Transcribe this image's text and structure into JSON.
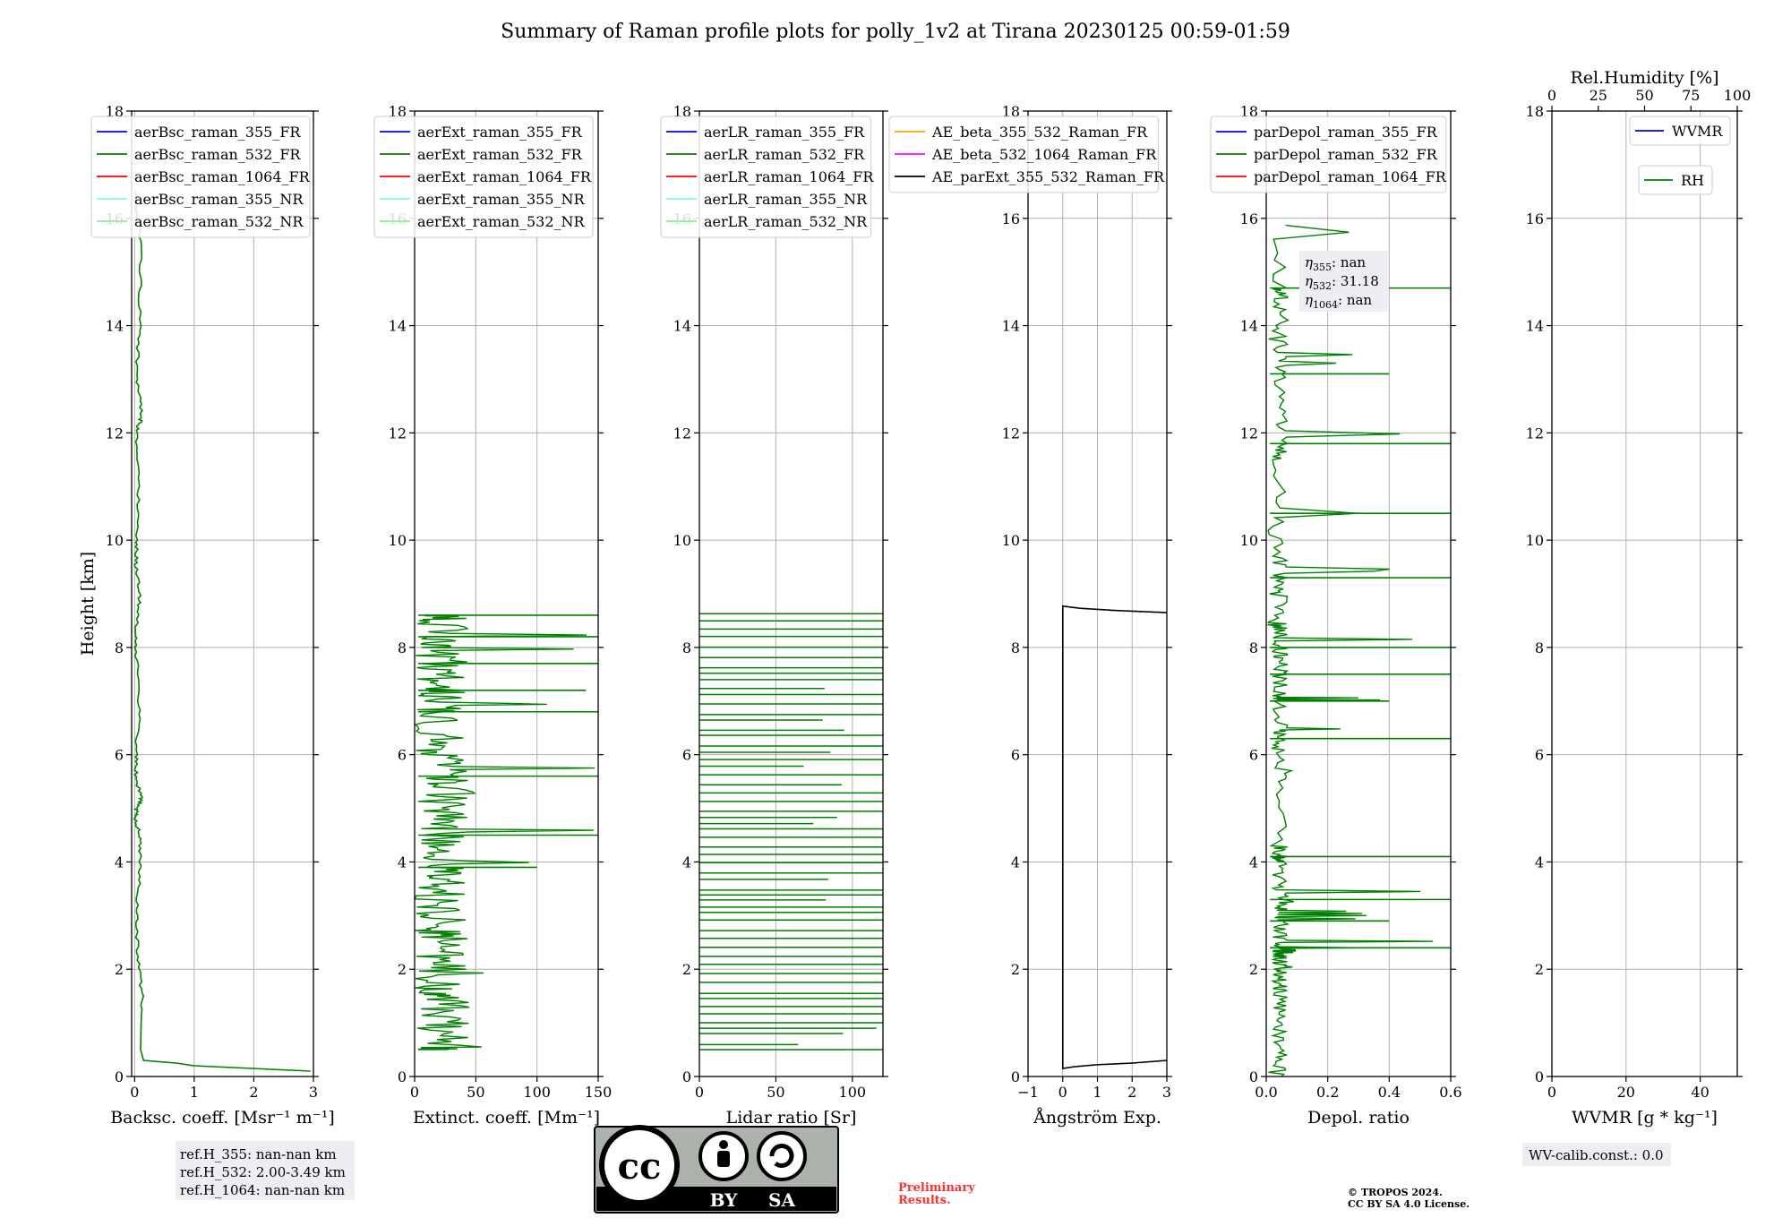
{
  "title": "Summary of Raman profile plots for polly_1v2 at Tirana 20230125 00:59-01:59",
  "ylabel": "Height [km]",
  "yticks": [
    "0",
    "2",
    "4",
    "6",
    "8",
    "10",
    "12",
    "14",
    "16",
    "18"
  ],
  "panels": [
    {
      "xlabel": "Backsc. coeff. [Msr⁻¹ m⁻¹]",
      "xticks": [
        "0",
        "1",
        "2",
        "3"
      ],
      "legend": [
        {
          "label": "aerBsc_raman_355_FR",
          "color": "#0000ff"
        },
        {
          "label": "aerBsc_raman_532_FR",
          "color": "#008000"
        },
        {
          "label": "aerBsc_raman_1064_FR",
          "color": "#ff0000"
        },
        {
          "label": "aerBsc_raman_355_NR",
          "color": "#7fffd4"
        },
        {
          "label": "aerBsc_raman_532_NR",
          "color": "#90ee90"
        }
      ]
    },
    {
      "xlabel": "Extinct. coeff. [Mm⁻¹]",
      "xticks": [
        "0",
        "50",
        "100",
        "150"
      ],
      "legend": [
        {
          "label": "aerExt_raman_355_FR",
          "color": "#0000ff"
        },
        {
          "label": "aerExt_raman_532_FR",
          "color": "#008000"
        },
        {
          "label": "aerExt_raman_1064_FR",
          "color": "#ff0000"
        },
        {
          "label": "aerExt_raman_355_NR",
          "color": "#7fffd4"
        },
        {
          "label": "aerExt_raman_532_NR",
          "color": "#90ee90"
        }
      ]
    },
    {
      "xlabel": "Lidar ratio [Sr]",
      "xticks": [
        "0",
        "50",
        "100"
      ],
      "legend": [
        {
          "label": "aerLR_raman_355_FR",
          "color": "#0000ff"
        },
        {
          "label": "aerLR_raman_532_FR",
          "color": "#008000"
        },
        {
          "label": "aerLR_raman_1064_FR",
          "color": "#ff0000"
        },
        {
          "label": "aerLR_raman_355_NR",
          "color": "#7fffd4"
        },
        {
          "label": "aerLR_raman_532_NR",
          "color": "#90ee90"
        }
      ]
    },
    {
      "xlabel": "Ångström Exp.",
      "xticks": [
        "−1",
        "0",
        "1",
        "2",
        "3"
      ],
      "legend": [
        {
          "label": "AE_beta_355_532_Raman_FR",
          "color": "#ffa500"
        },
        {
          "label": "AE_beta_532_1064_Raman_FR",
          "color": "#ff00ff"
        },
        {
          "label": "AE_parExt_355_532_Raman_FR",
          "color": "#000000"
        }
      ]
    },
    {
      "xlabel": "Depol. ratio",
      "xticks": [
        "0.0",
        "0.2",
        "0.4",
        "0.6"
      ],
      "legend": [
        {
          "label": "parDepol_raman_355_FR",
          "color": "#0000ff"
        },
        {
          "label": "parDepol_raman_532_FR",
          "color": "#008000"
        },
        {
          "label": "parDepol_raman_1064_FR",
          "color": "#ff0000"
        }
      ],
      "eta": [
        {
          "sub": "355",
          "value": "nan"
        },
        {
          "sub": "532",
          "value": "31.18"
        },
        {
          "sub": "1064",
          "value": "nan"
        }
      ]
    },
    {
      "xlabel": "WVMR [g * kg⁻¹]",
      "xticks": [
        "0",
        "20",
        "40"
      ],
      "top_label": "Rel.Humidity [%]",
      "top_ticks": [
        "0",
        "25",
        "50",
        "75",
        "100"
      ],
      "legend_wvmr": {
        "label": "WVMR",
        "color": "#0000ff"
      },
      "legend_rh": {
        "label": "RH",
        "color": "#008000"
      }
    }
  ],
  "ref_box": [
    "ref.H_355: nan-nan km",
    "ref.H_532: 2.00-3.49 km",
    "ref.H_1064: nan-nan km"
  ],
  "wv_calib": "WV-calib.const.: 0.0",
  "license_badge": {
    "cc": "cc",
    "by": "BY",
    "sa": "SA"
  },
  "preliminary": [
    "Preliminary",
    "Results."
  ],
  "copyright": [
    "© TROPOS 2024.",
    "CC BY SA 4.0 License."
  ],
  "chart_data": [
    {
      "type": "line",
      "xlabel": "Backsc. coeff. [Msr⁻¹ m⁻¹]",
      "ylabel": "Height [km]",
      "xlim": [
        -0.05,
        3
      ],
      "ylim": [
        0,
        18
      ],
      "series": [
        {
          "name": "aerBsc_raman_532_FR",
          "color": "#008000",
          "x": [
            2.95,
            1.0,
            0.7,
            0.15,
            0.1,
            0.12,
            0.05,
            0.03,
            0.08,
            0.1,
            0.02,
            0.04,
            0.12,
            0.02,
            0.03,
            0.08,
            0.02,
            0.03,
            0.1,
            0.02,
            0.03,
            0.08,
            0.02,
            0.12,
            0.03,
            0.08,
            0.1,
            0.02
          ],
          "y": [
            0.1,
            0.2,
            0.25,
            0.3,
            0.5,
            1.5,
            2.3,
            3.0,
            3.8,
            4.4,
            4.8,
            5.0,
            5.2,
            5.5,
            6.0,
            7.0,
            8.0,
            8.5,
            9.0,
            9.5,
            10.0,
            11.0,
            12.0,
            12.3,
            13.0,
            14.0,
            15.5,
            16.5
          ]
        }
      ]
    },
    {
      "type": "line",
      "xlabel": "Extinct. coeff. [Mm⁻¹]",
      "ylabel": "Height [km]",
      "xlim": [
        0,
        150
      ],
      "ylim": [
        0,
        18
      ],
      "series": [
        {
          "name": "aerExt_raman_532_FR",
          "color": "#008000",
          "note_values": "noisy profile, values between 0 and 150, data above 8.6 km absent",
          "x": [
            5,
            55,
            20,
            40,
            10,
            60,
            25,
            50,
            15,
            70,
            30,
            85,
            20,
            100,
            10,
            150,
            30,
            60,
            20,
            150,
            40,
            80,
            10,
            150,
            20,
            140,
            30,
            150,
            10,
            150,
            5,
            150
          ],
          "y": [
            0.5,
            0.55,
            0.9,
            1.2,
            1.5,
            1.65,
            2.0,
            2.3,
            2.6,
            2.8,
            3.1,
            3.4,
            3.7,
            3.9,
            4.2,
            4.5,
            4.8,
            5.1,
            5.4,
            5.6,
            5.9,
            6.1,
            6.4,
            6.8,
            7.0,
            7.2,
            7.5,
            7.7,
            8.0,
            8.2,
            8.5,
            8.6
          ]
        }
      ]
    },
    {
      "type": "line",
      "xlabel": "Lidar ratio [Sr]",
      "ylabel": "Height [km]",
      "xlim": [
        0,
        120
      ],
      "ylim": [
        0,
        18
      ],
      "series": [
        {
          "name": "aerLR_raman_532_FR",
          "color": "#008000",
          "note_values": "horizontal spikes spanning 0 to 120 Sr between 0.5 and 8.6 km"
        }
      ]
    },
    {
      "type": "line",
      "xlabel": "Ångström Exp.",
      "ylabel": "Height [km]",
      "xlim": [
        -1,
        3
      ],
      "ylim": [
        0,
        18
      ],
      "series": [
        {
          "name": "AE_parExt_355_532_Raman_FR",
          "color": "#000000",
          "x": [
            3.0,
            2.0,
            1.0,
            0.3,
            0.0,
            0.0,
            0.0,
            0.5,
            1.5,
            3.0
          ],
          "y": [
            0.3,
            0.25,
            0.22,
            0.18,
            0.15,
            4.0,
            8.77,
            8.73,
            8.69,
            8.65
          ]
        }
      ]
    },
    {
      "type": "line",
      "xlabel": "Depol. ratio",
      "ylabel": "Height [km]",
      "xlim": [
        0,
        0.6
      ],
      "ylim": [
        0,
        18
      ],
      "series": [
        {
          "name": "parDepol_raman_532_FR",
          "color": "#008000",
          "x": [
            0.01,
            0.06,
            0.1,
            0.08,
            0.1,
            0.07,
            0.09,
            0.06,
            0.08,
            0.1,
            0.6,
            0.05,
            0.4,
            0.1,
            0.6,
            0.04,
            0.03,
            0.6,
            0.02,
            0.2,
            0.02,
            0.6,
            0.05,
            0.4,
            0.02,
            0.6,
            0.03,
            0.6,
            0.01,
            0.3,
            0.02,
            0.6,
            0.01,
            0.6,
            0.01,
            0.6,
            0.05,
            0.4,
            0.02,
            0.15,
            0.05,
            0.6,
            0.04
          ],
          "y": [
            0.0,
            0.4,
            0.8,
            1.2,
            1.6,
            1.8,
            2.0,
            2.2,
            2.25,
            2.3,
            2.4,
            2.6,
            2.9,
            3.1,
            3.3,
            3.6,
            4.0,
            4.1,
            4.3,
            5.5,
            6.0,
            6.3,
            6.5,
            7.0,
            7.1,
            7.5,
            7.8,
            8.0,
            8.3,
            8.5,
            9.0,
            9.3,
            9.7,
            10.5,
            11.5,
            11.8,
            12.4,
            13.1,
            13.5,
            14.0,
            14.5,
            14.7,
            16.0
          ]
        }
      ]
    },
    {
      "type": "line",
      "xlabel": "WVMR [g * kg⁻¹]",
      "ylabel": "Height [km]",
      "xlim": [
        0,
        50
      ],
      "ylim": [
        0,
        18
      ],
      "top_xlim": [
        0,
        100
      ],
      "series": [
        {
          "name": "WVMR",
          "color": "#0000ff",
          "values": []
        },
        {
          "name": "RH",
          "color": "#008000",
          "values": []
        }
      ]
    }
  ]
}
